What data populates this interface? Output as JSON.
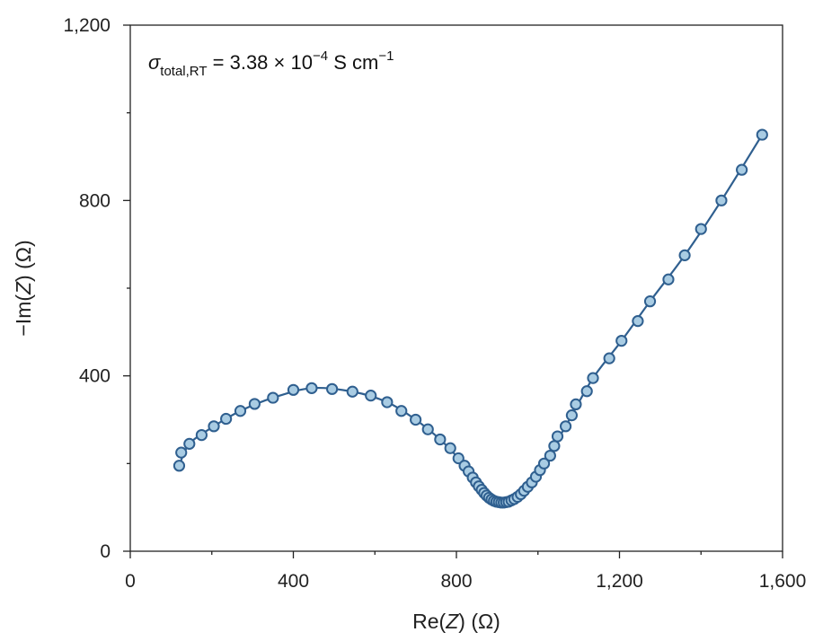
{
  "chart_data": {
    "type": "scatter",
    "xlabel": "Re(Z) (Ω)",
    "xlabel_parts": {
      "pre": "Re(",
      "var": "Z",
      "post": ") (Ω)"
    },
    "ylabel": "−Im(Z) (Ω)",
    "ylabel_parts": {
      "pre": "−Im(",
      "var": "Z",
      "post": ") (Ω)"
    },
    "xlim": [
      0,
      1600
    ],
    "ylim": [
      0,
      1200
    ],
    "x_ticks": [
      0,
      400,
      800,
      1200,
      1600
    ],
    "x_tick_labels": [
      "0",
      "400",
      "800",
      "1,200",
      "1,600"
    ],
    "x_minor_ticks": [
      200,
      600,
      1000,
      1400
    ],
    "y_ticks": [
      0,
      400,
      800,
      1200
    ],
    "y_tick_labels": [
      "0",
      "400",
      "800",
      "1,200"
    ],
    "y_minor_ticks": [
      200,
      600,
      1000
    ],
    "grid": false,
    "annotation": {
      "symbol": "σ",
      "subscript": "total,RT",
      "text": " = 3.38 × 10",
      "exponent": "−4",
      "unit": " S cm",
      "unit_exponent": "−1"
    },
    "colors": {
      "line": "#2f5f8f",
      "marker_fill": "#a9cce3",
      "marker_edge": "#2f5f8f"
    },
    "series": [
      {
        "points": [
          [
            120,
            195
          ],
          [
            125,
            225
          ],
          [
            145,
            245
          ],
          [
            175,
            265
          ],
          [
            205,
            285
          ],
          [
            235,
            302
          ],
          [
            270,
            320
          ],
          [
            305,
            336
          ],
          [
            350,
            350
          ],
          [
            400,
            368
          ],
          [
            445,
            372
          ],
          [
            495,
            370
          ],
          [
            545,
            364
          ],
          [
            590,
            355
          ],
          [
            630,
            340
          ],
          [
            665,
            320
          ],
          [
            700,
            300
          ],
          [
            730,
            278
          ],
          [
            760,
            255
          ],
          [
            785,
            235
          ],
          [
            805,
            212
          ],
          [
            820,
            195
          ],
          [
            830,
            182
          ],
          [
            840,
            168
          ],
          [
            848,
            157
          ],
          [
            855,
            148
          ],
          [
            862,
            140
          ],
          [
            868,
            133
          ],
          [
            874,
            127
          ],
          [
            880,
            122
          ],
          [
            886,
            118
          ],
          [
            892,
            115
          ],
          [
            898,
            113
          ],
          [
            904,
            112
          ],
          [
            910,
            111
          ],
          [
            916,
            111
          ],
          [
            922,
            112
          ],
          [
            928,
            113
          ],
          [
            935,
            116
          ],
          [
            942,
            119
          ],
          [
            950,
            124
          ],
          [
            958,
            130
          ],
          [
            966,
            138
          ],
          [
            975,
            147
          ],
          [
            985,
            157
          ],
          [
            995,
            170
          ],
          [
            1005,
            185
          ],
          [
            1015,
            200
          ],
          [
            1030,
            218
          ],
          [
            1040,
            240
          ],
          [
            1048,
            262
          ],
          [
            1068,
            285
          ],
          [
            1083,
            310
          ],
          [
            1093,
            335
          ],
          [
            1120,
            365
          ],
          [
            1135,
            395
          ],
          [
            1175,
            440
          ],
          [
            1205,
            480
          ],
          [
            1245,
            525
          ],
          [
            1275,
            570
          ],
          [
            1320,
            620
          ],
          [
            1360,
            675
          ],
          [
            1400,
            735
          ],
          [
            1450,
            800
          ],
          [
            1500,
            870
          ],
          [
            1550,
            950
          ]
        ],
        "fit": [
          [
            120,
            195
          ],
          [
            145,
            245
          ],
          [
            205,
            285
          ],
          [
            270,
            320
          ],
          [
            350,
            350
          ],
          [
            445,
            372
          ],
          [
            545,
            364
          ],
          [
            630,
            340
          ],
          [
            700,
            300
          ],
          [
            760,
            255
          ],
          [
            805,
            212
          ],
          [
            840,
            168
          ],
          [
            868,
            133
          ],
          [
            892,
            115
          ],
          [
            910,
            111
          ],
          [
            928,
            113
          ],
          [
            950,
            124
          ],
          [
            975,
            147
          ],
          [
            1005,
            185
          ],
          [
            1040,
            240
          ],
          [
            1083,
            310
          ],
          [
            1135,
            395
          ],
          [
            1205,
            480
          ],
          [
            1275,
            570
          ],
          [
            1360,
            675
          ],
          [
            1450,
            800
          ],
          [
            1550,
            950
          ]
        ]
      }
    ]
  }
}
